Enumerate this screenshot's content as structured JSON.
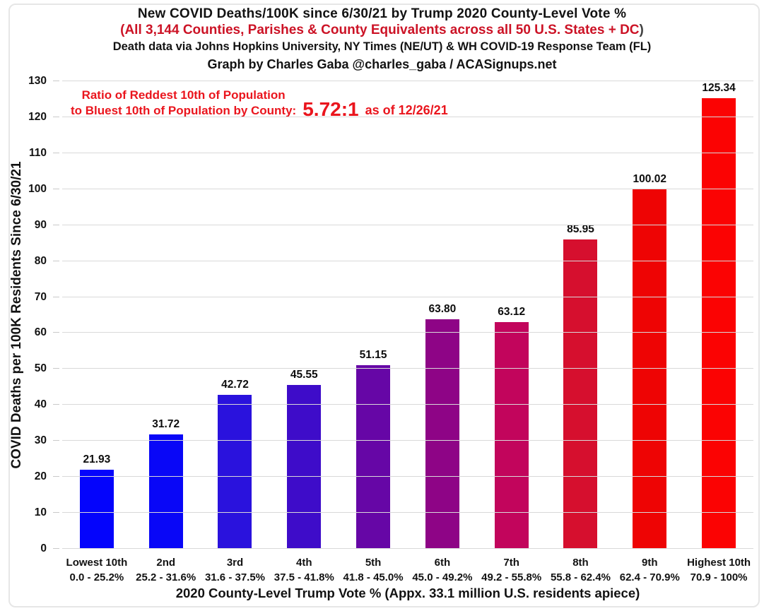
{
  "header": {
    "title": "New COVID Deaths/100K since 6/30/21 by Trump 2020 County-Level Vote %",
    "subtitle": "(All 3,144 Counties, Parishes & County Equivalents across all 50 U.S. States + DC",
    "subtitle_close": ")",
    "source_line": "Death data via Johns Hopkins University, NY Times (NE/UT) & WH COVID-19 Response Team (FL)",
    "credit_line": "Graph by Charles Gaba @charles_gaba / ACASignups.net"
  },
  "annotation": {
    "line1": "Ratio of Reddest 10th of Population",
    "line2": "to Bluest 10th of Population by County:",
    "ratio": "5.72:1",
    "suffix": "as of 12/26/21"
  },
  "chart_data": {
    "type": "bar",
    "title": "New COVID Deaths/100K since 6/30/21 by Trump 2020 County-Level Vote %",
    "categories": [
      "Lowest 10th",
      "2nd",
      "3rd",
      "4th",
      "5th",
      "6th",
      "7th",
      "8th",
      "9th",
      "Highest 10th"
    ],
    "category_ranges": [
      "0.0 - 25.2%",
      "25.2 - 31.6%",
      "31.6 - 37.5%",
      "37.5 - 41.8%",
      "41.8 - 45.0%",
      "45.0 - 49.2%",
      "49.2 - 55.8%",
      "55.8 - 62.4%",
      "62.4 - 70.9%",
      "70.9 - 100%"
    ],
    "values": [
      21.93,
      31.72,
      42.72,
      45.55,
      51.15,
      63.8,
      63.12,
      85.95,
      100.02,
      125.34
    ],
    "value_labels": [
      "21.93",
      "31.72",
      "42.72",
      "45.55",
      "51.15",
      "63.80",
      "63.12",
      "85.95",
      "100.02",
      "125.34"
    ],
    "bar_colors": [
      "#0404fc",
      "#0907f7",
      "#2a12dd",
      "#3e0cc9",
      "#6606a6",
      "#8e0486",
      "#c2055c",
      "#d60f2e",
      "#ee0404",
      "#fb0303"
    ],
    "xlabel": "2020 County-Level Trump Vote % (Appx. 33.1 million U.S. residents apiece)",
    "ylabel": "COVID Deaths per 100K Residents Since 6/30/21",
    "ylim": [
      0,
      130
    ],
    "ytick_step": 10,
    "grid": true,
    "legend": false
  },
  "colors": {
    "subtitle_red": "#cc1326",
    "annotation_red": "#ea151d",
    "gridline": "#d9d9d9"
  }
}
